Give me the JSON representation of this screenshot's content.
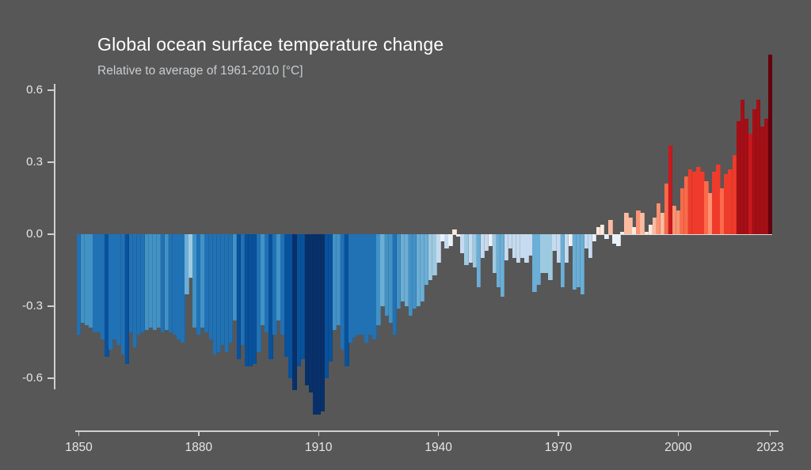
{
  "page": {
    "background": "#575757"
  },
  "header": {
    "title": "Global ocean surface temperature change",
    "subtitle": "Relative to average of 1961-2010  [°C]"
  },
  "chart_data": {
    "type": "bar",
    "title": "Global ocean surface temperature change",
    "subtitle": "Relative to average of 1961-2010 [°C]",
    "unit": "°C",
    "baseline_period": "1961-2010",
    "year_start": 1850,
    "year_end": 2023,
    "values": [
      -0.42,
      -0.37,
      -0.38,
      -0.39,
      -0.41,
      -0.41,
      -0.44,
      -0.51,
      -0.48,
      -0.44,
      -0.46,
      -0.5,
      -0.54,
      -0.41,
      -0.47,
      -0.42,
      -0.41,
      -0.4,
      -0.39,
      -0.4,
      -0.39,
      -0.41,
      -0.4,
      -0.41,
      -0.42,
      -0.44,
      -0.45,
      -0.25,
      -0.18,
      -0.39,
      -0.42,
      -0.39,
      -0.41,
      -0.44,
      -0.5,
      -0.49,
      -0.46,
      -0.49,
      -0.45,
      -0.36,
      -0.52,
      -0.46,
      -0.55,
      -0.55,
      -0.54,
      -0.49,
      -0.38,
      -0.41,
      -0.52,
      -0.42,
      -0.36,
      -0.42,
      -0.51,
      -0.6,
      -0.65,
      -0.55,
      -0.52,
      -0.63,
      -0.66,
      -0.75,
      -0.75,
      -0.74,
      -0.6,
      -0.53,
      -0.4,
      -0.38,
      -0.48,
      -0.55,
      -0.45,
      -0.43,
      -0.42,
      -0.42,
      -0.45,
      -0.42,
      -0.44,
      -0.38,
      -0.3,
      -0.34,
      -0.37,
      -0.42,
      -0.31,
      -0.28,
      -0.3,
      -0.34,
      -0.31,
      -0.3,
      -0.28,
      -0.21,
      -0.19,
      -0.17,
      -0.12,
      -0.03,
      -0.06,
      -0.05,
      0.02,
      -0.01,
      -0.08,
      -0.13,
      -0.12,
      -0.14,
      -0.22,
      -0.1,
      -0.07,
      -0.05,
      -0.16,
      -0.22,
      -0.26,
      -0.11,
      -0.06,
      -0.1,
      -0.12,
      -0.1,
      -0.12,
      -0.09,
      -0.24,
      -0.21,
      -0.16,
      -0.16,
      -0.19,
      -0.07,
      -0.12,
      -0.22,
      -0.12,
      -0.05,
      -0.23,
      -0.22,
      -0.25,
      -0.06,
      -0.1,
      -0.03,
      0.03,
      0.04,
      -0.02,
      0.06,
      -0.04,
      -0.05,
      0.01,
      0.09,
      0.07,
      0.03,
      0.1,
      0.09,
      0.01,
      0.04,
      0.07,
      0.13,
      0.09,
      0.21,
      0.37,
      0.12,
      0.1,
      0.19,
      0.24,
      0.27,
      0.26,
      0.28,
      0.26,
      0.22,
      0.17,
      0.26,
      0.29,
      0.19,
      0.25,
      0.27,
      0.33,
      0.47,
      0.56,
      0.48,
      0.42,
      0.52,
      0.56,
      0.45,
      0.48,
      0.75
    ],
    "ylim": [
      -0.78,
      0.78
    ],
    "y_ticks": [
      0.6,
      0.3,
      0.0,
      -0.3,
      -0.6
    ],
    "y_tick_labels": [
      "0.6",
      "0.3",
      "0.0",
      "-0.3",
      "-0.6"
    ],
    "x_ticks": [
      1850,
      1880,
      1910,
      1940,
      1970,
      2000,
      2023
    ],
    "x_tick_labels": [
      "1850",
      "1880",
      "1910",
      "1940",
      "1970",
      "2000",
      "2023"
    ],
    "grid": false,
    "legend": false,
    "color_scale": {
      "type": "diverging-RdBu",
      "bins": [
        {
          "lt": -0.62,
          "color": "#08306b"
        },
        {
          "lt": -0.5,
          "color": "#08519c"
        },
        {
          "lt": -0.4,
          "color": "#2171b5"
        },
        {
          "lt": -0.3,
          "color": "#4292c6"
        },
        {
          "lt": -0.2,
          "color": "#6baed6"
        },
        {
          "lt": -0.12,
          "color": "#9ecae1"
        },
        {
          "lt": -0.05,
          "color": "#c6dbef"
        },
        {
          "lt": 0.0,
          "color": "#e9f1f8"
        },
        {
          "lt": 0.05,
          "color": "#fee9dd"
        },
        {
          "lt": 0.1,
          "color": "#fcbba1"
        },
        {
          "lt": 0.18,
          "color": "#fc9272"
        },
        {
          "lt": 0.25,
          "color": "#fb6a4a"
        },
        {
          "lt": 0.35,
          "color": "#ef3b2c"
        },
        {
          "lt": 0.45,
          "color": "#cb181d"
        },
        {
          "lt": 0.6,
          "color": "#a50f15"
        },
        {
          "lt": 99,
          "color": "#67000d"
        }
      ]
    }
  }
}
